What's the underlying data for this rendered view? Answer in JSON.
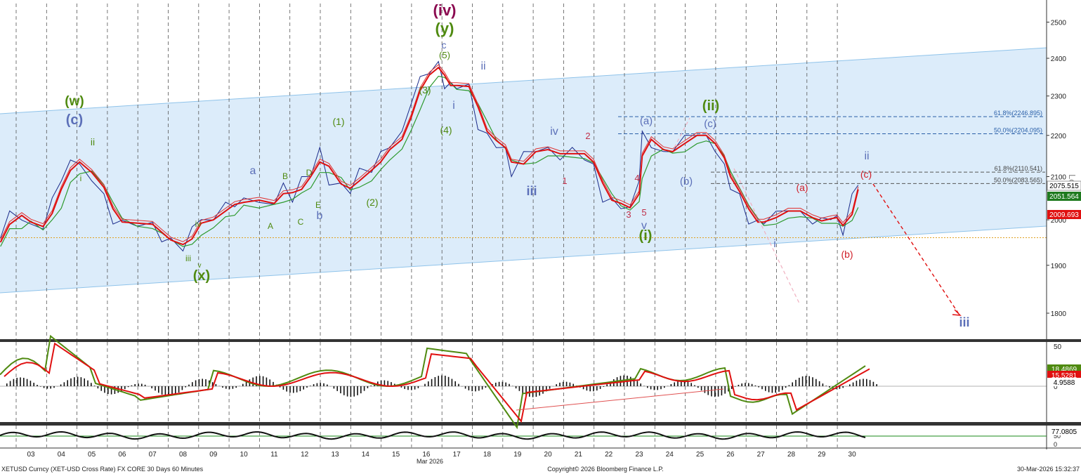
{
  "footer": {
    "instrument": "XETUSD Curncy (XET-USD Cross Rate) FX CORE 30 Days 60 Minutes",
    "copyright": "Copyright© 2026 Bloomberg Finance L.P.",
    "datetime": "30-Mar-2026 15:32:37",
    "month_label": "Mar 2026"
  },
  "scale_label": "Log",
  "chart_data": [
    {
      "type": "line",
      "panel": "price",
      "x_ticks": [
        "03",
        "04",
        "05",
        "06",
        "07",
        "08",
        "09",
        "10",
        "11",
        "12",
        "13",
        "14",
        "15",
        "16",
        "17",
        "18",
        "19",
        "20",
        "21",
        "22",
        "23",
        "24",
        "25",
        "26",
        "27",
        "28",
        "29",
        "30"
      ],
      "y_ticks": [
        "2500",
        "2400",
        "2300",
        "2200",
        "2100",
        "2000",
        "1900",
        "1800"
      ],
      "ylim": [
        1740,
        2560
      ],
      "y_scale": "log",
      "price_path_date": [
        2.0,
        2.3,
        2.7,
        3.0,
        3.4,
        3.7,
        4.0,
        4.3,
        4.6,
        5.0,
        5.4,
        5.7,
        6.0,
        6.5,
        7.0,
        7.3,
        7.6,
        8.0,
        8.3,
        8.6,
        9.0,
        9.4,
        9.7,
        10.0,
        10.5,
        11.0,
        11.3,
        11.6,
        11.9,
        12.2,
        12.5,
        12.8,
        13.2,
        13.5,
        13.8,
        14.2,
        14.5,
        14.8,
        15.2,
        15.5,
        15.8,
        16.1,
        16.4,
        16.6,
        16.8,
        17.0,
        17.4,
        17.7,
        18.0,
        18.3,
        18.6,
        18.8,
        19.2,
        19.6,
        20.0,
        20.4,
        20.8,
        21.2,
        21.5,
        21.8,
        22.1,
        22.4,
        22.7,
        23.0,
        23.1,
        23.4,
        23.8,
        24.1,
        24.5,
        24.9,
        25.2,
        25.5,
        25.8,
        26.0,
        26.3,
        26.6,
        26.9,
        27.1,
        27.5,
        27.9,
        28.3,
        28.7,
        29.0,
        29.3,
        29.5,
        29.7,
        30.0,
        30.2
      ],
      "price_path_value": [
        1950,
        2030,
        1990,
        2000,
        1970,
        2060,
        2080,
        2150,
        2120,
        2100,
        2050,
        2000,
        1990,
        1995,
        1985,
        1960,
        1950,
        1940,
        1975,
        2010,
        1990,
        2050,
        2020,
        2060,
        2030,
        2045,
        2075,
        2050,
        2090,
        2110,
        2160,
        2090,
        2075,
        2070,
        2110,
        2120,
        2150,
        2180,
        2200,
        2290,
        2340,
        2370,
        2380,
        2330,
        2325,
        2330,
        2320,
        2225,
        2195,
        2180,
        2160,
        2110,
        2150,
        2170,
        2160,
        2150,
        2160,
        2150,
        2120,
        2050,
        2040,
        2035,
        2020,
        2100,
        2200,
        2180,
        2150,
        2170,
        2190,
        2210,
        2190,
        2170,
        2120,
        2080,
        2050,
        2000,
        1990,
        2000,
        2010,
        2030,
        2010,
        2000,
        1995,
        2010,
        2000,
        1975,
        2050,
        2090
      ],
      "annotations_text": [
        {
          "text": "(iv)",
          "color": "#8b0a50"
        },
        {
          "text": "(y)",
          "color": "#4f8a10"
        },
        {
          "text": "c",
          "color": "#5b6fb8"
        },
        {
          "text": "(5)",
          "color": "#4f8a10"
        },
        {
          "text": "ii",
          "color": "#5b6fb8"
        },
        {
          "text": "i",
          "color": "#5b6fb8"
        },
        {
          "text": "(3)",
          "color": "#4f8a10"
        },
        {
          "text": "(4)",
          "color": "#4f8a10"
        },
        {
          "text": "(w)",
          "color": "#4f8a10"
        },
        {
          "text": "(c)",
          "color": "#5b6fb8"
        },
        {
          "text": "ii",
          "color": "#4f8a10"
        },
        {
          "text": "i",
          "color": "#4f8a10"
        },
        {
          "text": "a",
          "color": "#5b6fb8"
        },
        {
          "text": "B",
          "color": "#4f8a10"
        },
        {
          "text": "D",
          "color": "#4f8a10"
        },
        {
          "text": "A",
          "color": "#4f8a10"
        },
        {
          "text": "C",
          "color": "#4f8a10"
        },
        {
          "text": "E",
          "color": "#4f8a10"
        },
        {
          "text": "b",
          "color": "#5b6fb8"
        },
        {
          "text": "(1)",
          "color": "#4f8a10"
        },
        {
          "text": "(2)",
          "color": "#4f8a10"
        },
        {
          "text": "iv",
          "color": "#4f8a10"
        },
        {
          "text": "iii",
          "color": "#4f8a10"
        },
        {
          "text": "v",
          "color": "#4f8a10"
        },
        {
          "text": "(x)",
          "color": "#4f8a10"
        },
        {
          "text": "iv",
          "color": "#5b6fb8"
        },
        {
          "text": "iii",
          "color": "#5b6fb8"
        },
        {
          "text": "2",
          "color": "#c0304a"
        },
        {
          "text": "1",
          "color": "#c0304a"
        },
        {
          "text": "4",
          "color": "#c0304a"
        },
        {
          "text": "3",
          "color": "#c0304a"
        },
        {
          "text": "5",
          "color": "#c0304a"
        },
        {
          "text": "v",
          "color": "#5b6fb8"
        },
        {
          "text": "(i)",
          "color": "#4f8a10"
        },
        {
          "text": "(a)",
          "color": "#5b6fb8"
        },
        {
          "text": "(b)",
          "color": "#5b6fb8"
        },
        {
          "text": "(c)",
          "color": "#5b6fb8"
        },
        {
          "text": "(ii)",
          "color": "#4f8a10"
        },
        {
          "text": "(a)",
          "color": "#d0202a"
        },
        {
          "text": "(b)",
          "color": "#d0202a"
        },
        {
          "text": "(c)",
          "color": "#d0202a"
        },
        {
          "text": "ii",
          "color": "#5b6fb8"
        },
        {
          "text": "i",
          "color": "#5b6fb8"
        },
        {
          "text": "iii",
          "color": "#5b6fb8"
        }
      ],
      "fib_levels": [
        {
          "label": "61.8%(2246.895)",
          "value": 2246.895
        },
        {
          "label": "50.0%(2204.095)",
          "value": 2204.095
        },
        {
          "label": "61.8%(2110.541)",
          "value": 2110.541
        },
        {
          "label": "50.0%(2083.565)",
          "value": 2083.565
        }
      ],
      "value_tags": [
        {
          "text": "2075.515",
          "bg": "#ffffff",
          "fg": "#000000"
        },
        {
          "text": "2051.564",
          "bg": "#1f7a1f",
          "fg": "#ffffff"
        },
        {
          "text": "2009.693",
          "bg": "#e01010",
          "fg": "#ffffff"
        }
      ],
      "horizontal_line_value": 1960
    },
    {
      "type": "line",
      "panel": "oscillator",
      "y_ticks": [
        "50",
        "0"
      ],
      "value_tags": [
        {
          "text": "18.4869",
          "bg": "#4f8a10",
          "fg": "#ffffff"
        },
        {
          "text": "15.5281",
          "bg": "#e01010",
          "fg": "#ffffff"
        },
        {
          "text": "4.9588",
          "bg": "#ffffff",
          "fg": "#000000"
        }
      ]
    },
    {
      "type": "line",
      "panel": "rsi",
      "y_ticks": [
        "70",
        "50",
        "0"
      ],
      "value_tags": [
        {
          "text": "77.0805",
          "bg": "#ffffff",
          "fg": "#000000"
        }
      ]
    }
  ]
}
